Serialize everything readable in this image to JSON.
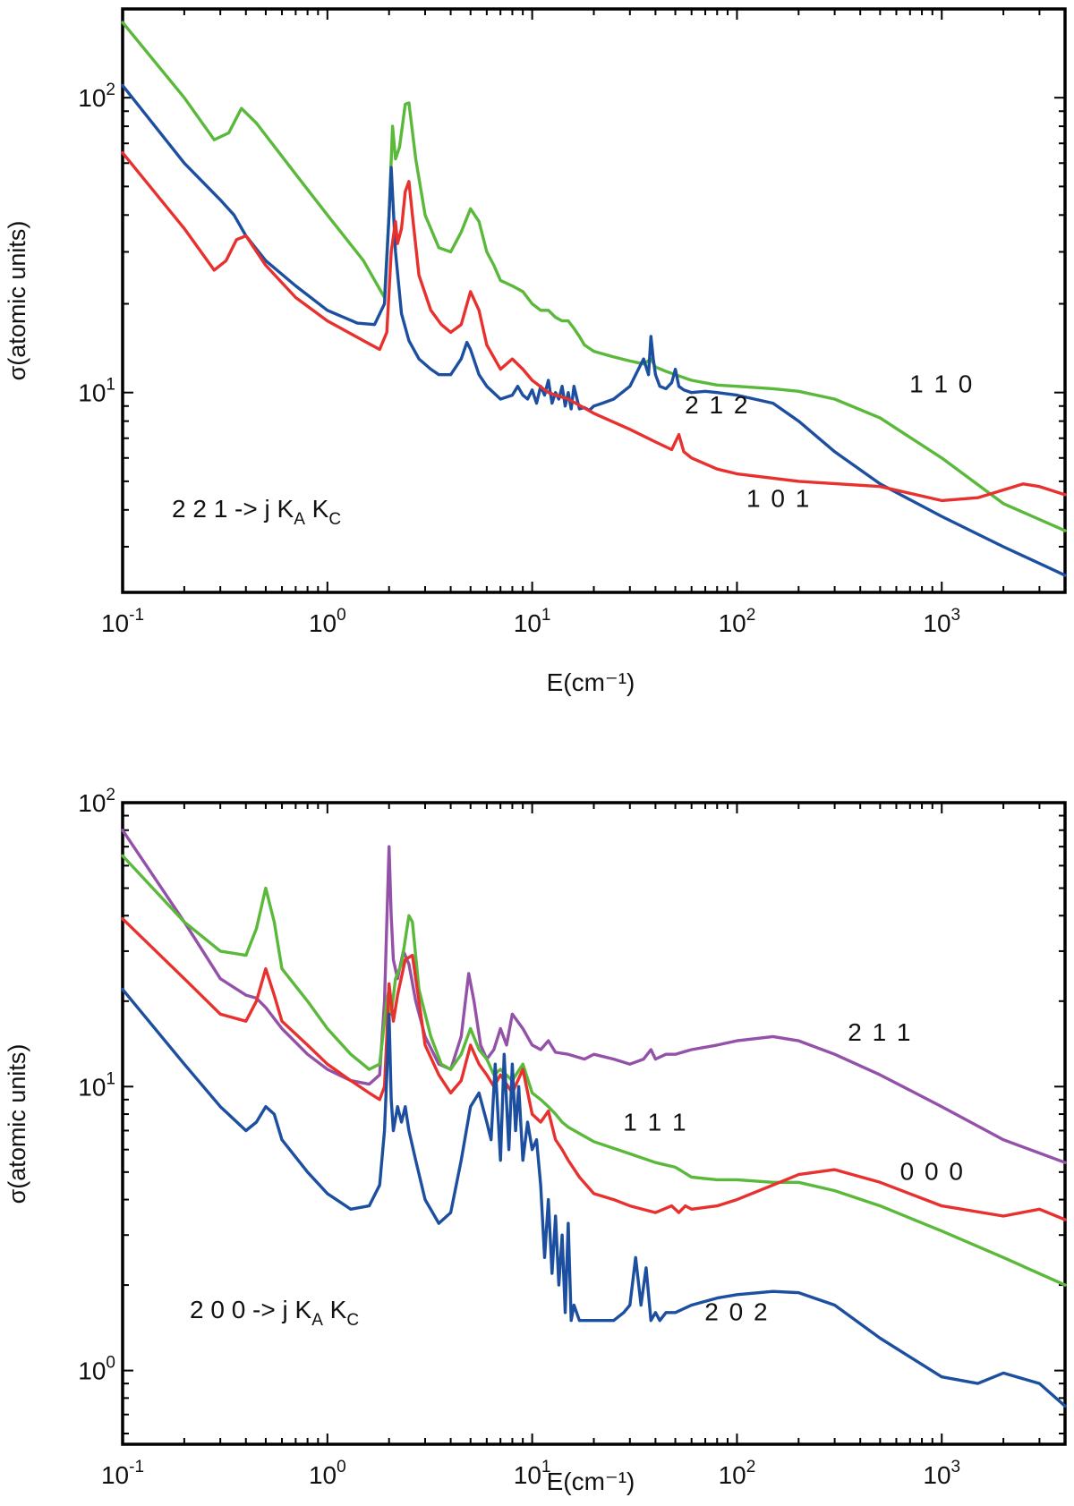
{
  "colors": {
    "green": "#5ab93b",
    "red": "#e8312f",
    "blue": "#1d4fa0",
    "purple": "#9451a8",
    "axis": "#000000"
  },
  "chart_data": [
    {
      "type": "line",
      "xscale": "log",
      "yscale": "log",
      "title": "",
      "xlabel": "E(cm⁻¹)",
      "ylabel": "σ(atomic units)",
      "xlim": [
        0.1,
        4000
      ],
      "ylim": [
        2.1,
        200
      ],
      "xticks": [
        {
          "value": 0.1,
          "base": "10",
          "exp": "-1"
        },
        {
          "value": 1,
          "base": "10",
          "exp": "0"
        },
        {
          "value": 10,
          "base": "10",
          "exp": "1"
        },
        {
          "value": 100,
          "base": "10",
          "exp": "2"
        },
        {
          "value": 1000,
          "base": "10",
          "exp": "3"
        }
      ],
      "yticks": [
        {
          "value": 10,
          "base": "10",
          "exp": "1"
        },
        {
          "value": 100,
          "base": "10",
          "exp": "2"
        }
      ],
      "transition_label": {
        "prefix": "2 2 1 -> j K",
        "sub1": "A",
        "mid": " K",
        "sub2": "C"
      },
      "series": [
        {
          "name": "1 1 0",
          "color": "green",
          "label_at": [
            1000,
            10.0
          ],
          "x": [
            0.1,
            0.2,
            0.28,
            0.33,
            0.38,
            0.45,
            0.7,
            1.0,
            1.5,
            1.9,
            2.0,
            2.08,
            2.15,
            2.25,
            2.4,
            2.5,
            2.7,
            3.0,
            3.5,
            4.0,
            4.5,
            5.0,
            5.5,
            6.0,
            6.5,
            7.0,
            8.0,
            9.0,
            10,
            11,
            12,
            13,
            14,
            15,
            16,
            17,
            18,
            20,
            25,
            30,
            35,
            38,
            40,
            45,
            50,
            60,
            80,
            100,
            150,
            200,
            300,
            500,
            1000,
            2000,
            4000
          ],
          "values": [
            180,
            100,
            72,
            76,
            92,
            82,
            55,
            40,
            28,
            21,
            40,
            80,
            62,
            68,
            95,
            96,
            62,
            40,
            31,
            30,
            35,
            42,
            38,
            30,
            27,
            24,
            23,
            22,
            20,
            19,
            19,
            18,
            17.5,
            17.5,
            16.5,
            15.5,
            14.5,
            13.8,
            13.2,
            12.8,
            12.5,
            13,
            12.2,
            11.8,
            11.5,
            11,
            10.6,
            10.5,
            10.3,
            10.1,
            9.5,
            8.2,
            6.0,
            4.2,
            3.4
          ]
        },
        {
          "name": "2 1 2",
          "color": "blue",
          "label_at": [
            80,
            8.5
          ],
          "x": [
            0.1,
            0.2,
            0.3,
            0.35,
            0.4,
            0.5,
            0.7,
            1.0,
            1.4,
            1.7,
            1.9,
            2.0,
            2.05,
            2.15,
            2.3,
            2.5,
            2.8,
            3.2,
            3.5,
            4.0,
            4.5,
            4.8,
            5.0,
            5.5,
            6.0,
            7.0,
            8.0,
            8.5,
            9.0,
            9.5,
            10,
            10.5,
            11,
            11.5,
            12,
            12.5,
            13,
            13.5,
            14,
            14.5,
            15,
            15.5,
            16,
            17,
            18,
            19,
            20,
            22,
            25,
            30,
            33,
            35,
            37,
            38,
            39,
            40,
            42,
            45,
            48,
            50,
            52,
            55,
            60,
            70,
            80,
            100,
            150,
            200,
            300,
            500,
            1000,
            2000,
            4000
          ],
          "values": [
            110,
            60,
            45,
            40,
            34,
            28,
            23,
            19,
            17.2,
            17,
            20,
            40,
            58,
            30,
            18.5,
            15,
            13,
            12,
            11.5,
            11.5,
            13,
            14.8,
            14,
            11.5,
            10.5,
            9.5,
            9.8,
            10.5,
            9.8,
            9.5,
            10.2,
            9.2,
            10.5,
            9.8,
            11,
            9.2,
            10,
            9.5,
            10.5,
            9.0,
            10,
            8.8,
            10.5,
            8.8,
            8.9,
            8.7,
            9.0,
            9.2,
            9.5,
            10.5,
            12,
            13,
            11.5,
            15.5,
            13,
            11.5,
            10.5,
            10.3,
            10.8,
            12,
            10.5,
            10.2,
            10,
            10.1,
            10,
            9.8,
            9.2,
            8.0,
            6.3,
            4.9,
            3.8,
            3.0,
            2.4
          ]
        },
        {
          "name": "1 0 1",
          "color": "red",
          "label_at": [
            160,
            4.1
          ],
          "x": [
            0.1,
            0.2,
            0.28,
            0.32,
            0.36,
            0.4,
            0.5,
            0.7,
            1.0,
            1.5,
            1.8,
            1.95,
            2.05,
            2.15,
            2.2,
            2.3,
            2.4,
            2.5,
            2.6,
            2.8,
            3.2,
            3.6,
            4.0,
            4.5,
            5.0,
            5.5,
            6.0,
            7.0,
            8.0,
            9.0,
            10,
            12,
            15,
            20,
            30,
            40,
            48,
            52,
            55,
            60,
            80,
            100,
            200,
            500,
            1000,
            1500,
            2500,
            3000,
            4000
          ],
          "values": [
            65,
            36,
            26,
            28,
            33,
            34,
            27,
            21,
            17.5,
            15,
            14,
            16,
            30,
            38,
            32,
            36,
            48,
            52,
            40,
            25,
            19,
            17,
            16,
            17,
            22,
            19,
            14.5,
            12,
            13,
            12,
            11,
            10,
            9.5,
            8.5,
            7.5,
            6.8,
            6.4,
            7.2,
            6.3,
            6.0,
            5.5,
            5.3,
            5.0,
            4.8,
            4.3,
            4.4,
            4.9,
            4.8,
            4.5
          ]
        }
      ]
    },
    {
      "type": "line",
      "xscale": "log",
      "yscale": "log",
      "title": "",
      "xlabel": "E(cm⁻¹)",
      "ylabel": "σ(atomic units)",
      "xlim": [
        0.1,
        4000
      ],
      "ylim": [
        0.55,
        100
      ],
      "xticks": [
        {
          "value": 0.1,
          "base": "10",
          "exp": "-1"
        },
        {
          "value": 1,
          "base": "10",
          "exp": "0"
        },
        {
          "value": 10,
          "base": "10",
          "exp": "1"
        },
        {
          "value": 100,
          "base": "10",
          "exp": "2"
        },
        {
          "value": 1000,
          "base": "10",
          "exp": "3"
        }
      ],
      "yticks": [
        {
          "value": 1,
          "base": "10",
          "exp": "0"
        },
        {
          "value": 10,
          "base": "10",
          "exp": "1"
        },
        {
          "value": 100,
          "base": "10",
          "exp": "2"
        }
      ],
      "transition_label": {
        "prefix": "2 0 0 -> j K",
        "sub1": "A",
        "mid": " K",
        "sub2": "C"
      },
      "series": [
        {
          "name": "2 1 1",
          "color": "purple",
          "label_at": [
            500,
            14.5
          ],
          "x": [
            0.1,
            0.2,
            0.3,
            0.4,
            0.45,
            0.5,
            0.6,
            0.8,
            1.0,
            1.3,
            1.6,
            1.8,
            1.9,
            1.95,
            2.0,
            2.05,
            2.1,
            2.2,
            2.35,
            2.5,
            2.7,
            3.0,
            3.5,
            4.0,
            4.5,
            4.9,
            5.2,
            5.6,
            6.0,
            6.5,
            7.0,
            7.5,
            8.0,
            9.0,
            10,
            11,
            12,
            13,
            15,
            18,
            20,
            25,
            30,
            35,
            38,
            40,
            45,
            50,
            60,
            80,
            100,
            150,
            200,
            300,
            500,
            1000,
            2000,
            4000
          ],
          "values": [
            80,
            38,
            24,
            21,
            20.5,
            19,
            16,
            13,
            11.5,
            10.5,
            10.2,
            11,
            20,
            38,
            70,
            40,
            28,
            24,
            30,
            27,
            20,
            15,
            12,
            11.5,
            15,
            25,
            20,
            14,
            12.5,
            13.5,
            16,
            14,
            18,
            16,
            14,
            13.5,
            14.5,
            13.2,
            13,
            12.5,
            13,
            12.5,
            12,
            12.5,
            13.5,
            12.5,
            13,
            13,
            13.5,
            14,
            14.5,
            15,
            14.5,
            13,
            11,
            8.5,
            6.5,
            5.4
          ]
        },
        {
          "name": "1 1 1",
          "color": "green",
          "label_at": [
            40,
            7.0
          ],
          "x": [
            0.1,
            0.2,
            0.3,
            0.4,
            0.45,
            0.5,
            0.55,
            0.6,
            0.8,
            1.0,
            1.3,
            1.6,
            1.8,
            1.95,
            2.0,
            2.05,
            2.15,
            2.3,
            2.5,
            2.6,
            2.8,
            3.2,
            3.6,
            4.0,
            4.5,
            5.0,
            5.5,
            6.0,
            6.5,
            7.0,
            8.0,
            9.0,
            10,
            11,
            12,
            13,
            14,
            15,
            20,
            30,
            40,
            50,
            60,
            80,
            100,
            150,
            200,
            300,
            500,
            1000,
            2000,
            4000
          ],
          "values": [
            65,
            38,
            30,
            29,
            36,
            50,
            38,
            26,
            20,
            16,
            13,
            11.5,
            12,
            20,
            22,
            18,
            24,
            27,
            40,
            38,
            22,
            15,
            12,
            11.5,
            13,
            16,
            13.5,
            12.5,
            11,
            11.5,
            10.5,
            12,
            9.5,
            9.0,
            8.5,
            8.0,
            7.5,
            7.2,
            6.4,
            5.8,
            5.4,
            5.2,
            4.8,
            4.7,
            4.7,
            4.6,
            4.6,
            4.3,
            3.8,
            3.1,
            2.5,
            2.0
          ]
        },
        {
          "name": "0 0 0",
          "color": "red",
          "label_at": [
            900,
            4.7
          ],
          "x": [
            0.1,
            0.2,
            0.3,
            0.4,
            0.45,
            0.5,
            0.55,
            0.6,
            0.8,
            1.0,
            1.3,
            1.6,
            1.8,
            1.9,
            1.95,
            2.0,
            2.1,
            2.2,
            2.4,
            2.6,
            2.8,
            3.0,
            3.5,
            4.0,
            4.5,
            5.0,
            5.5,
            6.0,
            6.5,
            7.0,
            8.0,
            9.0,
            10,
            11,
            12,
            13,
            14,
            15,
            17,
            20,
            25,
            30,
            40,
            48,
            52,
            56,
            60,
            80,
            100,
            150,
            200,
            300,
            500,
            1000,
            2000,
            3000,
            4000
          ],
          "values": [
            39,
            24,
            18,
            17,
            20,
            26,
            21,
            17,
            14,
            12,
            10.5,
            9.5,
            9.0,
            10,
            15,
            23,
            17,
            21,
            28,
            29,
            20,
            14,
            11,
            9.5,
            10.5,
            14,
            12,
            11,
            10,
            11,
            9.5,
            11.5,
            8,
            7.5,
            8.2,
            6.5,
            6.0,
            5.5,
            4.8,
            4.2,
            4.0,
            3.8,
            3.6,
            3.8,
            3.6,
            3.8,
            3.7,
            3.8,
            4.0,
            4.5,
            4.9,
            5.1,
            4.6,
            3.8,
            3.5,
            3.7,
            3.4
          ]
        },
        {
          "name": "2 0 2",
          "color": "blue",
          "label_at": [
            100,
            1.5
          ],
          "x": [
            0.1,
            0.2,
            0.3,
            0.4,
            0.45,
            0.5,
            0.55,
            0.6,
            0.8,
            1.0,
            1.3,
            1.6,
            1.8,
            1.9,
            1.95,
            2.0,
            2.05,
            2.1,
            2.2,
            2.3,
            2.4,
            2.5,
            2.7,
            3.0,
            3.5,
            4.0,
            4.5,
            5.0,
            5.5,
            6.0,
            6.3,
            6.6,
            7.0,
            7.3,
            7.7,
            8.0,
            8.3,
            8.6,
            9.0,
            9.5,
            10,
            10.5,
            11,
            11.5,
            12,
            12.5,
            13,
            13.5,
            14,
            14.5,
            15,
            15.5,
            16,
            17,
            18,
            20,
            25,
            28,
            30,
            32,
            34,
            36,
            38,
            40,
            42,
            45,
            50,
            60,
            80,
            100,
            150,
            200,
            300,
            500,
            1000,
            1500,
            2000,
            3000,
            4000
          ],
          "values": [
            22,
            12,
            8.5,
            7.0,
            7.5,
            8.5,
            8.0,
            6.5,
            5.0,
            4.2,
            3.7,
            3.8,
            4.5,
            7,
            11,
            18,
            9,
            7,
            8.5,
            7.5,
            8.5,
            7,
            5.5,
            4.0,
            3.3,
            3.6,
            5.5,
            8.5,
            9.5,
            7.5,
            6.5,
            12,
            5.5,
            13,
            6,
            12,
            7,
            10,
            5.5,
            7.5,
            6,
            6.5,
            4.5,
            2.5,
            4,
            2.2,
            3.5,
            2.0,
            3.0,
            1.6,
            3.3,
            1.5,
            1.7,
            1.5,
            1.5,
            1.5,
            1.5,
            1.6,
            1.7,
            2.5,
            1.7,
            2.3,
            1.5,
            1.6,
            1.5,
            1.6,
            1.6,
            1.7,
            1.8,
            1.85,
            1.9,
            1.88,
            1.7,
            1.3,
            0.95,
            0.9,
            0.98,
            0.9,
            0.75
          ]
        }
      ]
    }
  ]
}
